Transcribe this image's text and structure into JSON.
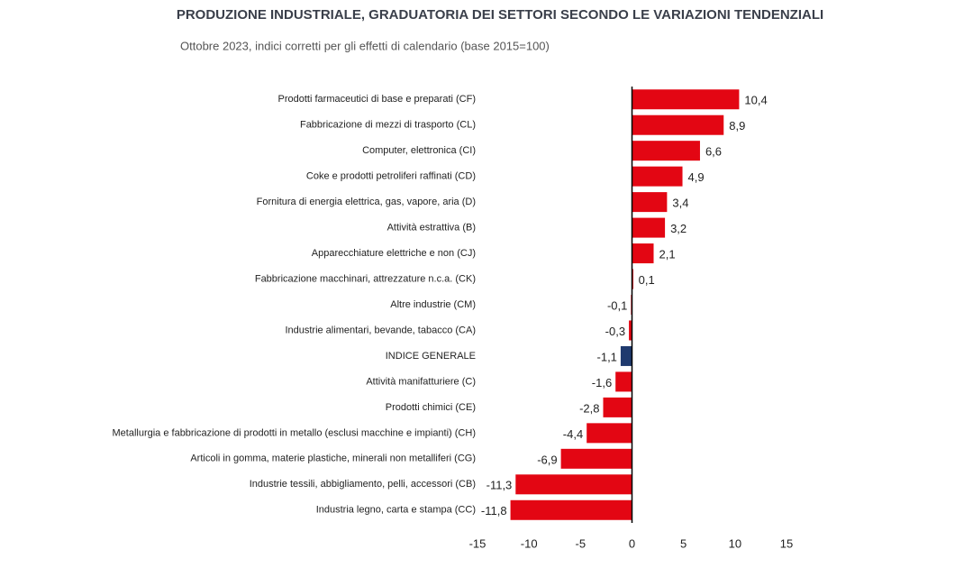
{
  "chart_data": {
    "type": "hbar",
    "title": "PRODUZIONE INDUSTRIALE, GRADUATORIA DEI SETTORI SECONDO LE VARIAZIONI TENDENZIALI",
    "subtitle": "Ottobre 2023, indici corretti per gli effetti di calendario (base 2015=100)",
    "categories": [
      "Prodotti farmaceutici di base e preparati (CF)",
      "Fabbricazione di mezzi di trasporto (CL)",
      "Computer, elettronica (CI)",
      "Coke e prodotti petroliferi raffinati (CD)",
      "Fornitura di energia elettrica, gas, vapore, aria (D)",
      "Attività estrattiva (B)",
      "Apparecchiature elettriche e non (CJ)",
      "Fabbricazione macchinari, attrezzature n.c.a. (CK)",
      "Altre industrie (CM)",
      "Industrie alimentari, bevande, tabacco (CA)",
      "INDICE GENERALE",
      "Attività manifatturiere (C)",
      "Prodotti chimici (CE)",
      "Metallurgia e fabbricazione di prodotti in metallo (esclusi macchine e impianti) (CH)",
      "Articoli in gomma, materie plastiche, minerali non metalliferi (CG)",
      "Industrie tessili, abbigliamento, pelli, accessori (CB)",
      "Industria legno, carta e stampa (CC)"
    ],
    "values": [
      10.4,
      8.9,
      6.6,
      4.9,
      3.4,
      3.2,
      2.1,
      0.1,
      -0.1,
      -0.3,
      -1.1,
      -1.6,
      -2.8,
      -4.4,
      -6.9,
      -11.3,
      -11.8
    ],
    "value_labels": [
      "10,4",
      "8,9",
      "6,6",
      "4,9",
      "3,4",
      "3,2",
      "2,1",
      "0,1",
      "-0,1",
      "-0,3",
      "-1,1",
      "-1,6",
      "-2,8",
      "-4,4",
      "-6,9",
      "-11,3",
      "-11,8"
    ],
    "colors": [
      "#e30613",
      "#e30613",
      "#e30613",
      "#e30613",
      "#e30613",
      "#e30613",
      "#e30613",
      "#e30613",
      "#e30613",
      "#e30613",
      "#1f3a6e",
      "#e30613",
      "#e30613",
      "#e30613",
      "#e30613",
      "#e30613",
      "#e30613"
    ],
    "xlim": [
      -15,
      15
    ],
    "xticks": [
      -15,
      -10,
      -5,
      0,
      5,
      10,
      15
    ]
  }
}
